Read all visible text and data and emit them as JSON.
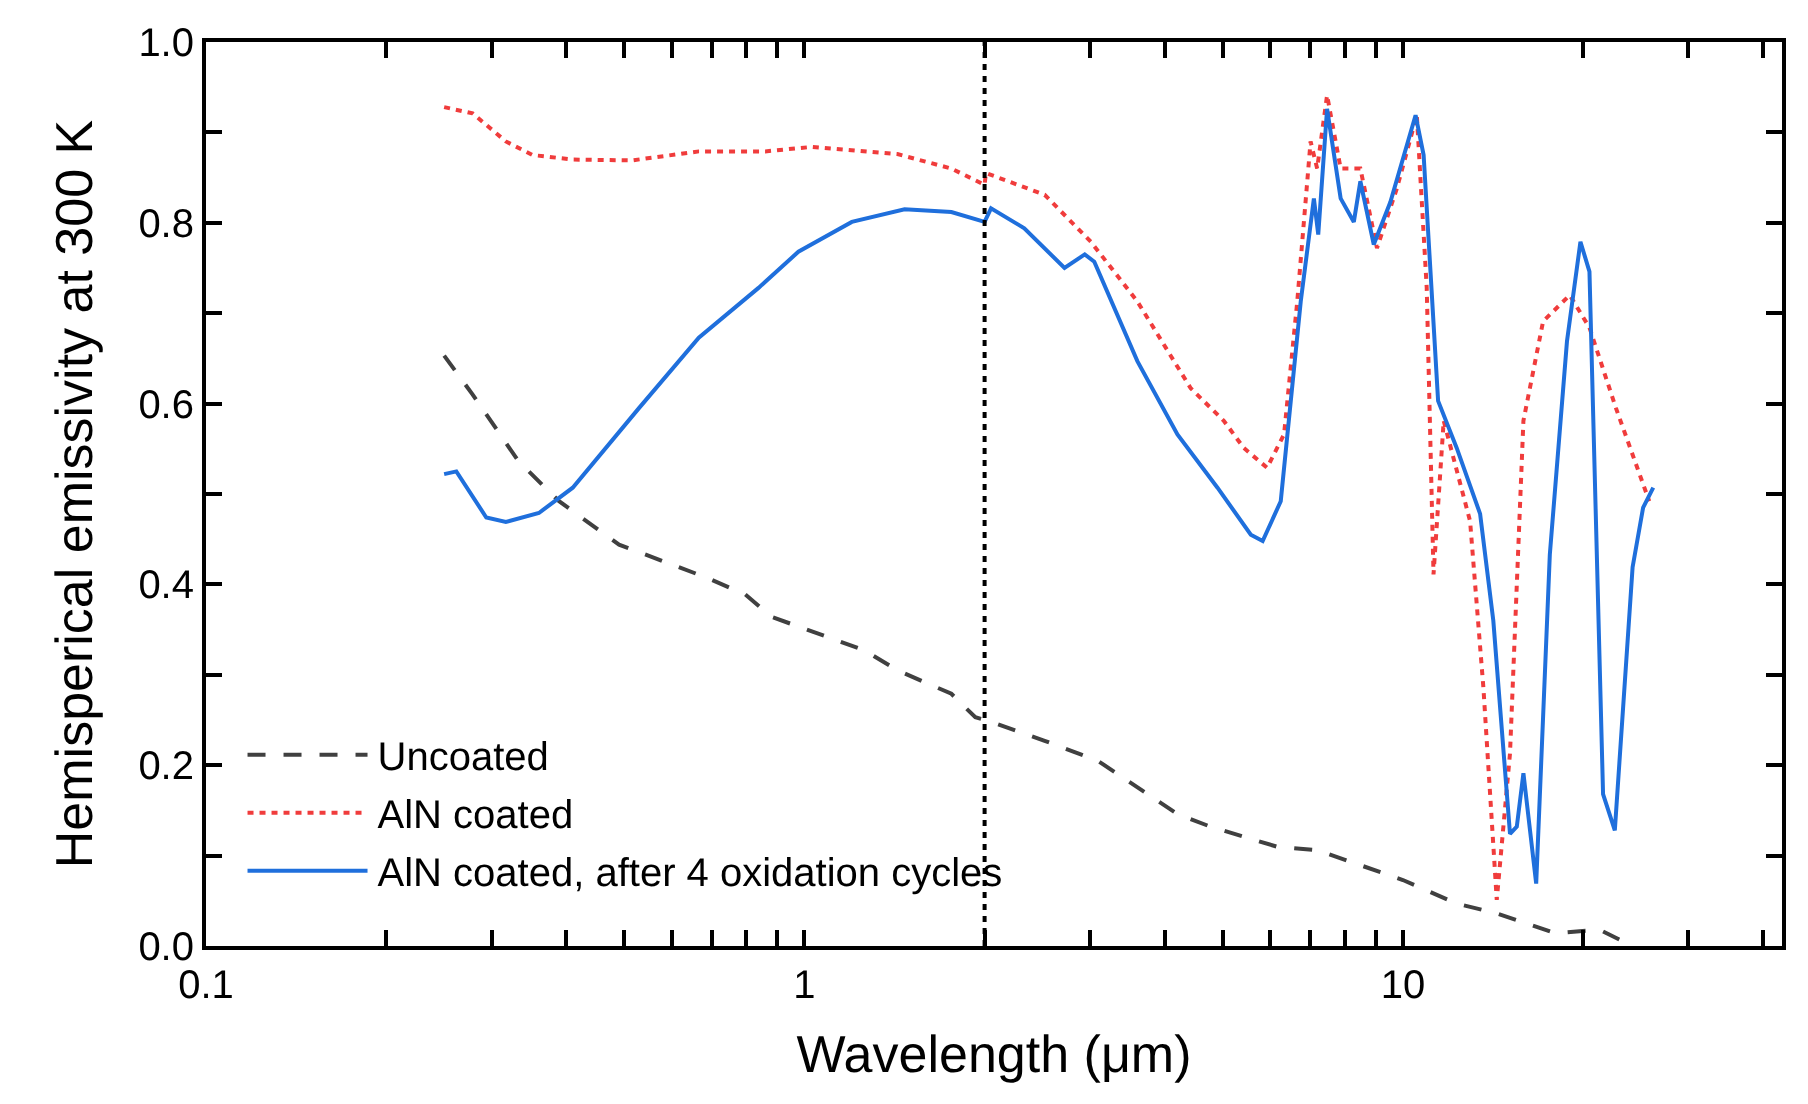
{
  "chart_data": {
    "type": "line",
    "xlabel": "Wavelength (μm)",
    "ylabel": "Hemisperical emissivity at 300 K",
    "log": "x",
    "xlim": [
      0.1,
      43
    ],
    "ylim": [
      0,
      1.0
    ],
    "xticks": [
      {
        "value": 0.1,
        "label": "0.1"
      },
      {
        "value": 0.2,
        "label": null
      },
      {
        "value": 0.3,
        "label": null
      },
      {
        "value": 0.4,
        "label": null
      },
      {
        "value": 0.5,
        "label": null
      },
      {
        "value": 0.6,
        "label": null
      },
      {
        "value": 0.7,
        "label": null
      },
      {
        "value": 0.8,
        "label": null
      },
      {
        "value": 0.9,
        "label": null
      },
      1,
      {
        "value": 2,
        "label": null
      },
      {
        "value": 3,
        "label": null
      },
      {
        "value": 4,
        "label": null
      },
      {
        "value": 5,
        "label": null
      },
      {
        "value": 6,
        "label": null
      },
      {
        "value": 7,
        "label": null
      },
      {
        "value": 8,
        "label": null
      },
      {
        "value": 9,
        "label": null
      },
      10,
      {
        "value": 20,
        "label": null
      },
      {
        "value": 30,
        "label": null
      },
      {
        "value": 40,
        "label": null
      }
    ],
    "yticks": [
      {
        "value": 0,
        "label": "0.0"
      },
      {
        "value": 0.1,
        "label": null
      },
      {
        "value": 0.2,
        "label": "0.2"
      },
      {
        "value": 0.3,
        "label": null
      },
      {
        "value": 0.4,
        "label": "0.4"
      },
      {
        "value": 0.5,
        "label": null
      },
      {
        "value": 0.6,
        "label": "0.6"
      },
      {
        "value": 0.7,
        "label": null
      },
      {
        "value": 0.8,
        "label": "0.8"
      },
      {
        "value": 0.9,
        "label": null
      },
      {
        "value": 1.0,
        "label": "1.0"
      }
    ],
    "legend": "bottom left",
    "marker": "none",
    "ref_lines": [
      {
        "axis": "x",
        "value": 2,
        "color": "#000000",
        "line_style": "dotted"
      }
    ],
    "series": [
      {
        "name": "Uncoated",
        "color": "#404040",
        "line_style": "dashed",
        "x": [
          0.25,
          0.279,
          0.333,
          0.389,
          0.49,
          0.683,
          0.796,
          0.882,
          1.26,
          1.43,
          1.76,
          1.93,
          2.03,
          2.52,
          3.09,
          4.2,
          4.77,
          6.15,
          7.19,
          10.0,
          12.3,
          14.35,
          18.0,
          21.3,
          24.2
        ],
        "values": [
          0.653,
          0.61,
          0.536,
          0.492,
          0.444,
          0.408,
          0.389,
          0.364,
          0.327,
          0.305,
          0.279,
          0.253,
          0.249,
          0.227,
          0.205,
          0.146,
          0.132,
          0.11,
          0.106,
          0.073,
          0.047,
          0.036,
          0.014,
          0.018,
          0.0
        ]
      },
      {
        "name": "AlN coated",
        "color": "#f03c3c",
        "line_style": "dotted",
        "x": [
          0.25,
          0.279,
          0.317,
          0.351,
          0.41,
          0.515,
          0.666,
          0.86,
          1.03,
          1.43,
          1.76,
          2.0,
          2.01,
          2.52,
          3.01,
          3.6,
          4.42,
          5.02,
          5.42,
          5.93,
          6.33,
          6.66,
          7.01,
          7.19,
          7.47,
          7.87,
          8.49,
          9.05,
          9.77,
          10.55,
          10.96,
          11.25,
          11.7,
          12.95,
          13.63,
          14.35,
          15.1,
          15.9,
          17.15,
          19.0,
          20.5,
          22.7,
          25.8
        ],
        "values": [
          0.928,
          0.921,
          0.89,
          0.875,
          0.87,
          0.869,
          0.879,
          0.879,
          0.884,
          0.876,
          0.86,
          0.842,
          0.855,
          0.831,
          0.779,
          0.713,
          0.617,
          0.581,
          0.551,
          0.529,
          0.566,
          0.713,
          0.89,
          0.86,
          0.941,
          0.86,
          0.86,
          0.772,
          0.838,
          0.919,
          0.728,
          0.411,
          0.581,
          0.47,
          0.286,
          0.051,
          0.213,
          0.581,
          0.691,
          0.72,
          0.684,
          0.595,
          0.492
        ]
      },
      {
        "name": "AlN coated, after 4 oxidation cycles",
        "color": "#1f6fdc",
        "line_style": "solid",
        "x": [
          0.25,
          0.262,
          0.294,
          0.317,
          0.36,
          0.41,
          0.529,
          0.666,
          0.838,
          0.977,
          1.2,
          1.47,
          1.76,
          2.0,
          2.05,
          2.33,
          2.72,
          2.94,
          3.05,
          3.6,
          4.2,
          4.9,
          5.57,
          5.83,
          6.25,
          6.75,
          7.1,
          7.22,
          7.47,
          7.87,
          8.28,
          8.49,
          8.94,
          9.53,
          10.5,
          10.83,
          11.45,
          12.3,
          13.46,
          14.16,
          15.1,
          15.5,
          15.9,
          16.7,
          17.6,
          18.8,
          19.8,
          20.5,
          21.6,
          22.6,
          24.2,
          25.2,
          26.2
        ],
        "values": [
          0.522,
          0.525,
          0.474,
          0.469,
          0.479,
          0.507,
          0.595,
          0.673,
          0.728,
          0.768,
          0.801,
          0.815,
          0.812,
          0.801,
          0.816,
          0.794,
          0.75,
          0.765,
          0.757,
          0.647,
          0.566,
          0.507,
          0.455,
          0.448,
          0.492,
          0.713,
          0.827,
          0.787,
          0.926,
          0.827,
          0.801,
          0.846,
          0.776,
          0.823,
          0.919,
          0.875,
          0.603,
          0.551,
          0.478,
          0.36,
          0.124,
          0.132,
          0.191,
          0.069,
          0.433,
          0.669,
          0.779,
          0.746,
          0.168,
          0.128,
          0.419,
          0.485,
          0.507
        ]
      }
    ]
  }
}
